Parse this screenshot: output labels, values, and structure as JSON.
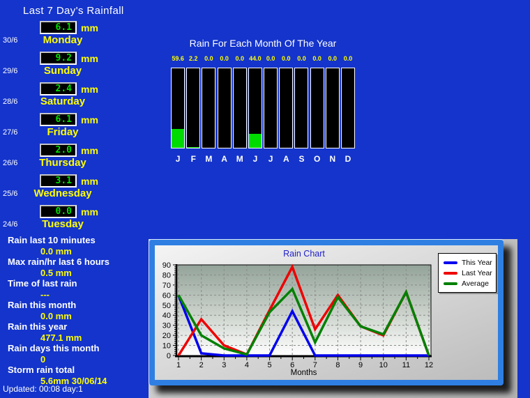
{
  "page_title": "Last 7 Day's Rainfall",
  "labels": {
    "mm": "mm"
  },
  "footer": {
    "updated": "Updated: 00:08 day:1"
  },
  "days": [
    {
      "date": "30/6",
      "name": "Monday",
      "value": "6.1"
    },
    {
      "date": "29/6",
      "name": "Sunday",
      "value": "9.2"
    },
    {
      "date": "28/6",
      "name": "Saturday",
      "value": "2.4"
    },
    {
      "date": "27/6",
      "name": "Friday",
      "value": "6.1"
    },
    {
      "date": "26/6",
      "name": "Thursday",
      "value": "2.0"
    },
    {
      "date": "25/6",
      "name": "Wednesday",
      "value": "3.1"
    },
    {
      "date": "24/6",
      "name": "Tuesday",
      "value": "0.0"
    }
  ],
  "stats": [
    {
      "label": "Rain last 10 minutes",
      "value": "0.0 mm"
    },
    {
      "label": "Max rain/hr last 6 hours",
      "value": "0.5 mm"
    },
    {
      "label": "Time of last rain",
      "value": "---"
    },
    {
      "label": "Rain this month",
      "value": "0.0 mm"
    },
    {
      "label": "Rain this year",
      "value": "477.1 mm"
    },
    {
      "label": "Rain days this month",
      "value": "0"
    },
    {
      "label": "Storm rain total",
      "value": "5.6mm 30/06/14"
    }
  ],
  "colors": {
    "page_bg": "#1434cb",
    "accent_yellow": "#ffff00",
    "lcd_green": "#00e000",
    "lcd_bg": "#000000",
    "frame_blue": "#2f7fe3",
    "chart_title_blue": "#2020cc"
  },
  "chart_data": [
    {
      "type": "bar",
      "title": "Rain For Each Month Of The Year",
      "categories": [
        "J",
        "F",
        "M",
        "A",
        "M",
        "J",
        "J",
        "A",
        "S",
        "O",
        "N",
        "D"
      ],
      "values": [
        59.6,
        2.2,
        0,
        0,
        0,
        44.0,
        0,
        0,
        0,
        0,
        0,
        0
      ],
      "value_labels": [
        "59.6",
        "2.2",
        "0.0",
        "0.0",
        "0.0",
        "44.0",
        "0.0",
        "0.0",
        "0.0",
        "0.0",
        "0.0",
        "0.0"
      ],
      "xlabel": "",
      "ylabel": "",
      "ylim": [
        0,
        250
      ],
      "bar_color": "#00dc00",
      "bar_bg": "#000000"
    },
    {
      "type": "line",
      "title": "Rain Chart",
      "xlabel": "Months",
      "x": [
        1,
        2,
        3,
        4,
        5,
        6,
        7,
        8,
        9,
        10,
        11,
        12
      ],
      "series": [
        {
          "name": "This Year",
          "color": "#0000ee",
          "values": [
            59.6,
            2.2,
            0,
            0,
            0,
            44,
            0,
            0,
            0,
            0,
            0,
            0
          ]
        },
        {
          "name": "Last Year",
          "color": "#ee0000",
          "values": [
            0,
            36,
            10,
            1,
            45,
            88,
            26,
            60,
            29,
            20,
            63,
            0
          ]
        },
        {
          "name": "Average",
          "color": "#008000",
          "values": [
            60,
            20,
            7,
            1,
            43,
            66,
            13,
            58,
            29,
            21,
            63,
            0
          ]
        }
      ],
      "ylim": [
        0,
        90
      ],
      "yticks": [
        0,
        10,
        20,
        30,
        40,
        50,
        60,
        70,
        80,
        90
      ],
      "grid": true,
      "legend_position": "top-right"
    }
  ]
}
